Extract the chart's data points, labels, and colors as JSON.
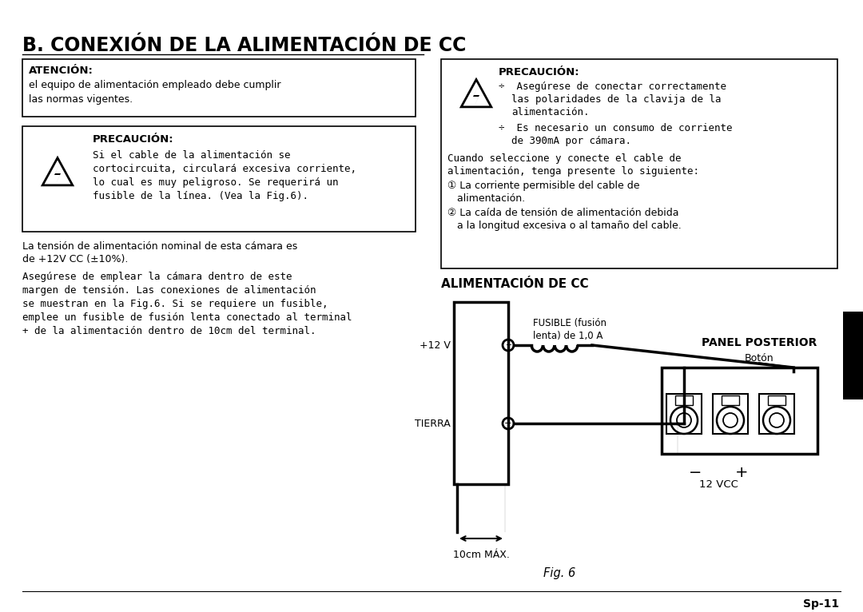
{
  "title": "B. CONEXIÓN DE LA ALIMENTACIÓN DE CC",
  "bg_color": "#ffffff",
  "text_color": "#000000",
  "atention_label": "ATENCIÓN:",
  "atention_text": "el equipo de alimentación empleado debe cumplir\nlas normas vigentes.",
  "precaucion1_label": "PRECAUCIÓN:",
  "precaucion1_text_l1": "Si el cable de la alimentación se",
  "precaucion1_text_l2": "cortocircuita, circulará excesiva corriente,",
  "precaucion1_text_l3": "lo cual es muy peligroso. Se requerirá un",
  "precaucion1_text_l4": "fusible de la línea. (Vea la Fig.6).",
  "precaucion2_label": "PRECAUCIÓN:",
  "precaucion2_b1l1": "÷  Asegúrese de conectar correctamente",
  "precaucion2_b1l2": "las polaridades de la clavija de la",
  "precaucion2_b1l3": "alimentación.",
  "precaucion2_b2l1": "÷  Es necesario un consumo de corriente",
  "precaucion2_b2l2": "de 390mA por cámara.",
  "precaucion2_tl1": "Cuando seleccione y conecte el cable de",
  "precaucion2_tl2": "alimentación, tenga presente lo siguiente:",
  "precaucion2_i1l1": "① La corriente permisible del cable de",
  "precaucion2_i1l2": "   alimentación.",
  "precaucion2_i2l1": "② La caída de tensión de alimentación debida",
  "precaucion2_i2l2": "   a la longitud excesiva o al tamaño del cable.",
  "body_text1l1": "La tensión de alimentación nominal de esta cámara es",
  "body_text1l2": "de +12V CC (±10%).",
  "body_text2l1": "Asegúrese de emplear la cámara dentro de este",
  "body_text2l2": "margen de tensión. Las conexiones de alimentación",
  "body_text2l3": "se muestran en la Fig.6. Si se requiere un fusible,",
  "body_text2l4": "emplee un fusible de fusión lenta conectado al terminal",
  "body_text2l5": "+ de la alimentación dentro de 10cm del terminal.",
  "alim_label": "ALIMENTACIÓN DE CC",
  "panel_label": "PANEL POSTERIOR",
  "boton_label": "Botón",
  "fusible_label_l1": "FUSIBLE (fusión",
  "fusible_label_l2": "lenta) de 1,0 A",
  "plus12v_label": "+12 V",
  "tierra_label": "TIERRA",
  "minus_label": "−",
  "plus_label": "+",
  "vcc_label": "12 VCC",
  "max_label": "10cm MÁX.",
  "fig_label": "Fig. 6",
  "page_label": "Sp-11"
}
